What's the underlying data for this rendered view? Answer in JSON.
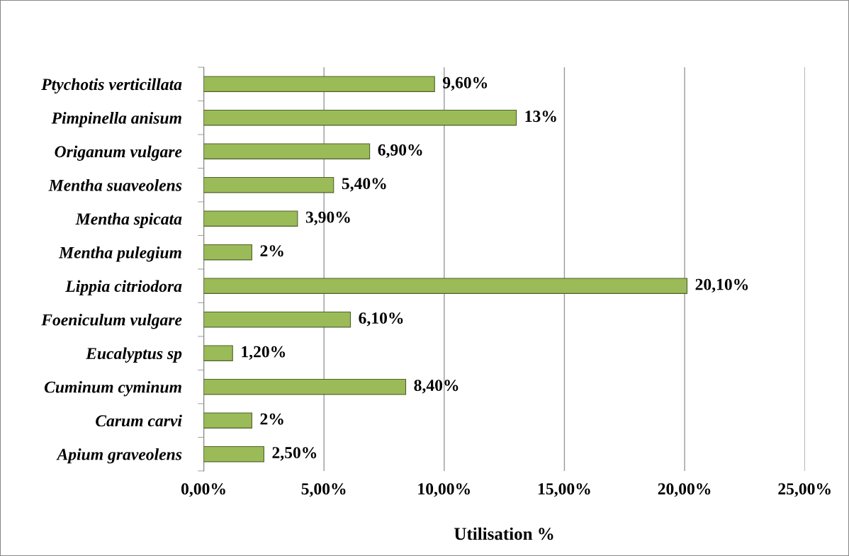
{
  "chart_data": {
    "type": "bar",
    "orientation": "horizontal",
    "xlabel": "Utilisation %",
    "categories": [
      "Ptychotis verticillata",
      "Pimpinella anisum",
      "Origanum vulgare",
      "Mentha suaveolens",
      "Mentha spicata",
      "Mentha pulegium",
      "Lippia citriodora",
      "Foeniculum vulgare",
      "Eucalyptus sp",
      "Cuminum cyminum",
      "Carum carvi",
      "Apium graveolens"
    ],
    "values": [
      9.6,
      13,
      6.9,
      5.4,
      3.9,
      2,
      20.1,
      6.1,
      1.2,
      8.4,
      2,
      2.5
    ],
    "value_labels": [
      "9,60%",
      "13%",
      "6,90%",
      "5,40%",
      "3,90%",
      "2%",
      "20,10%",
      "6,10%",
      "1,20%",
      "8,40%",
      "2%",
      "2,50%"
    ],
    "color": "#9bbb59",
    "xlim": [
      0,
      25
    ],
    "xticks": [
      {
        "value": 0,
        "label": "0,00%"
      },
      {
        "value": 5,
        "label": "5,00%"
      },
      {
        "value": 10,
        "label": "10,00%"
      },
      {
        "value": 15,
        "label": "15,00%"
      },
      {
        "value": 20,
        "label": "20,00%"
      },
      {
        "value": 25,
        "label": "25,00%"
      }
    ],
    "grid": "x"
  }
}
